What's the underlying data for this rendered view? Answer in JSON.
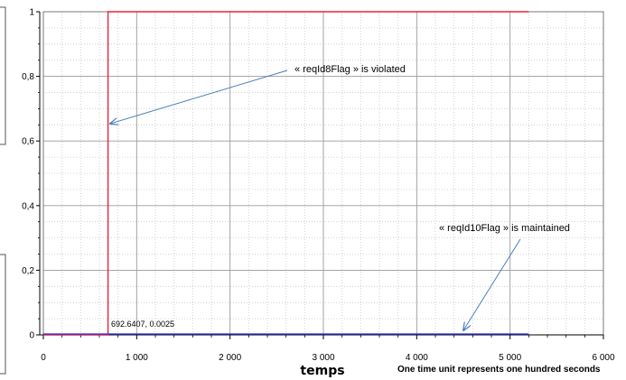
{
  "chart_data": {
    "type": "line",
    "xlabel": "temps",
    "x_note": "One time unit represents one hundred seconds",
    "xlim": [
      0,
      6000
    ],
    "ylim": [
      0,
      1
    ],
    "x_ticks": [
      {
        "value": 0,
        "label": "0"
      },
      {
        "value": 1000,
        "label": "1 000"
      },
      {
        "value": 2000,
        "label": "2 000"
      },
      {
        "value": 3000,
        "label": "3 000"
      },
      {
        "value": 4000,
        "label": "4 000"
      },
      {
        "value": 5000,
        "label": "5 000"
      },
      {
        "value": 6000,
        "label": "6 000"
      }
    ],
    "y_ticks": [
      {
        "value": 0,
        "label": "0"
      },
      {
        "value": 0.2,
        "label": "0,2"
      },
      {
        "value": 0.4,
        "label": "0,4"
      },
      {
        "value": 0.6,
        "label": "0,6"
      },
      {
        "value": 0.8,
        "label": "0,8"
      },
      {
        "value": 1,
        "label": "1"
      }
    ],
    "grid": true,
    "series": [
      {
        "color": "#e8233a",
        "x": [
          0,
          692.6407,
          692.6407,
          5200
        ],
        "y": [
          0,
          0,
          1,
          1
        ]
      },
      {
        "color": "#2f2fe0",
        "x": [
          0,
          5200
        ],
        "y": [
          0.0025,
          0.0025
        ]
      }
    ],
    "annotations": [
      {
        "text": "« reqId8Flag » is violated",
        "target": [
          692.6407,
          0.65
        ]
      },
      {
        "text": "« reqId10Flag » is maintained",
        "target": [
          4500,
          0.01
        ]
      },
      {
        "text": "692.6407, 0.0025"
      }
    ]
  }
}
